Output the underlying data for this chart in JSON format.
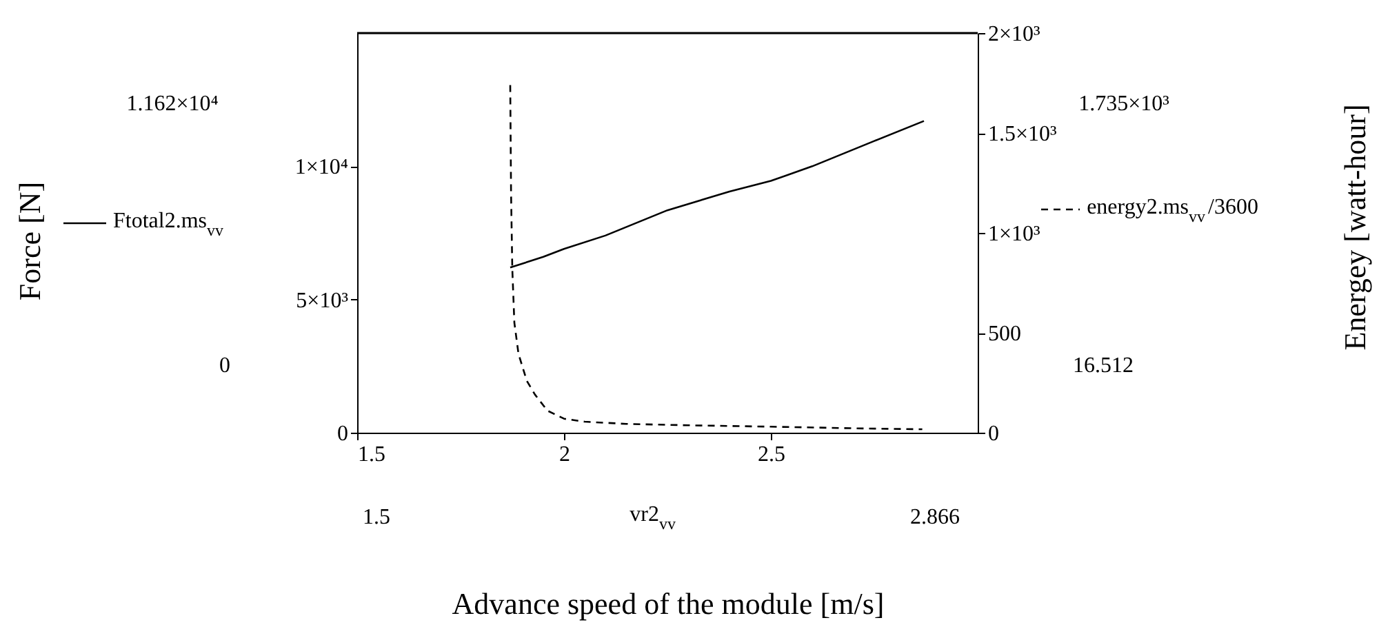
{
  "chart_data": {
    "type": "line",
    "xlabel": "Advance speed of the module [m/s]",
    "xlim": [
      1.5,
      3.0
    ],
    "xticks": [
      1.5,
      2,
      2.5
    ],
    "ylim": [
      0,
      15000
    ],
    "yticks": [
      0,
      {
        "value": 5000,
        "label": "5×10³"
      },
      {
        "value": 10000,
        "label": "1×10⁴"
      }
    ],
    "y2lim": [
      0,
      2000
    ],
    "y2ticks": [
      0,
      500,
      {
        "value": 1000,
        "label": "1×10³"
      },
      {
        "value": 1500,
        "label": "1.5×10³"
      },
      {
        "value": 2000,
        "label": "2×10³"
      }
    ],
    "grid": false,
    "legend": "left",
    "series": [
      {
        "name": "Ftotal2.ms$_{vv}$",
        "color": "#000000",
        "line_style": "solid",
        "x": [
          1.87,
          1.95,
          2.0,
          2.1,
          2.25,
          2.4,
          2.5,
          2.6,
          2.75,
          2.87
        ],
        "values": [
          6200,
          6600,
          6900,
          7400,
          8350,
          9050,
          9450,
          10000,
          10950,
          11700
        ]
      },
      {
        "name": "energy2.ms$_{vv}$/3600",
        "color": "#000000",
        "line_style": "dashed",
        "axis": "y2",
        "x": [
          1.87,
          1.872,
          1.875,
          1.88,
          1.89,
          1.91,
          1.93,
          1.96,
          2.0,
          2.05,
          2.15,
          2.3,
          2.5,
          2.7,
          2.866
        ],
        "values": [
          1740,
          1200,
          820,
          550,
          394,
          260,
          190,
          110,
          70,
          55,
          44,
          37,
          30,
          22,
          17
        ]
      }
    ],
    "annotations": [
      "1.162×10⁴",
      "0",
      "1.735×10³",
      "16.512",
      "1.5",
      "vr2$_{vv}$",
      "2.866",
      "Force [N]",
      "Energey [watt-hour]"
    ]
  }
}
